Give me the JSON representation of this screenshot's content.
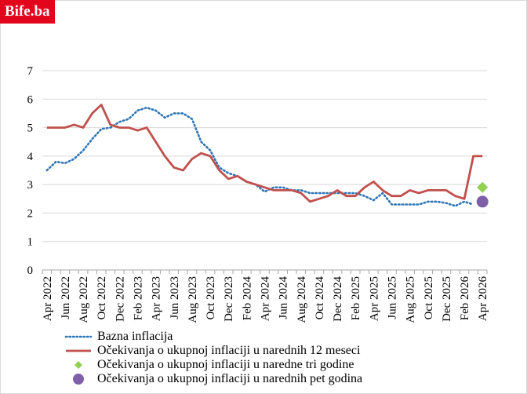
{
  "logo": {
    "text": "Bife.ba",
    "color": "#e3051b"
  },
  "chart_data": {
    "type": "line",
    "x_labels_shown": [
      "Apr 2022",
      "Jun 2022",
      "Aug 2022",
      "Oct 2022",
      "Dec 2022",
      "Feb 2023",
      "Apr 2023",
      "Jun 2023",
      "Aug 2023",
      "Oct 2023",
      "Dec 2023",
      "Feb 2024",
      "Apr 2024",
      "Jun 2024",
      "Aug 2024",
      "Oct 2024",
      "Dec 2024",
      "Feb 2025",
      "Apr 2025",
      "Jun 2025",
      "Aug 2025",
      "Oct 2025",
      "Dec 2025",
      "Feb 2026",
      "Apr 2026"
    ],
    "ylim": [
      0,
      7
    ],
    "yticks": [
      0,
      1,
      2,
      3,
      4,
      5,
      6,
      7
    ],
    "grid": "horizontal",
    "legend_position": "bottom",
    "series": [
      {
        "name": "Bazna inflacija",
        "style": "dotted",
        "color": "#2e75b6",
        "x": [
          "Apr 2022",
          "May 2022",
          "Jun 2022",
          "Jul 2022",
          "Aug 2022",
          "Sep 2022",
          "Oct 2022",
          "Nov 2022",
          "Dec 2022",
          "Jan 2023",
          "Feb 2023",
          "Mar 2023",
          "Apr 2023",
          "May 2023",
          "Jun 2023",
          "Jul 2023",
          "Aug 2023",
          "Sep 2023",
          "Oct 2023",
          "Nov 2023",
          "Dec 2023",
          "Jan 2024",
          "Feb 2024",
          "Mar 2024",
          "Apr 2024",
          "May 2024",
          "Jun 2024",
          "Jul 2024",
          "Aug 2024",
          "Sep 2024",
          "Oct 2024",
          "Nov 2024",
          "Dec 2024",
          "Jan 2025",
          "Feb 2025",
          "Mar 2025",
          "Apr 2025",
          "May 2025",
          "Jun 2025",
          "Jul 2025",
          "Aug 2025",
          "Sep 2025",
          "Oct 2025",
          "Nov 2025",
          "Dec 2025",
          "Jan 2026",
          "Feb 2026",
          "Mar 2026"
        ],
        "values": [
          3.5,
          3.8,
          3.75,
          3.9,
          4.2,
          4.6,
          4.95,
          5.0,
          5.2,
          5.3,
          5.6,
          5.7,
          5.6,
          5.35,
          5.5,
          5.5,
          5.3,
          4.5,
          4.2,
          3.6,
          3.4,
          3.3,
          3.1,
          3.0,
          2.75,
          2.9,
          2.9,
          2.8,
          2.8,
          2.7,
          2.7,
          2.7,
          2.7,
          2.7,
          2.7,
          2.6,
          2.45,
          2.7,
          2.3,
          2.3,
          2.3,
          2.3,
          2.4,
          2.4,
          2.35,
          2.25,
          2.4,
          2.3
        ]
      },
      {
        "name": "Očekivanja o ukupnoj  inflaciji u narednih 12 meseci",
        "style": "solid",
        "color": "#c0504d",
        "x": [
          "Apr 2022",
          "May 2022",
          "Jun 2022",
          "Jul 2022",
          "Aug 2022",
          "Sep 2022",
          "Oct 2022",
          "Nov 2022",
          "Dec 2022",
          "Jan 2023",
          "Feb 2023",
          "Mar 2023",
          "Apr 2023",
          "May 2023",
          "Jun 2023",
          "Jul 2023",
          "Aug 2023",
          "Sep 2023",
          "Oct 2023",
          "Nov 2023",
          "Dec 2023",
          "Jan 2024",
          "Feb 2024",
          "Mar 2024",
          "Apr 2024",
          "May 2024",
          "Jun 2024",
          "Jul 2024",
          "Aug 2024",
          "Sep 2024",
          "Oct 2024",
          "Nov 2024",
          "Dec 2024",
          "Jan 2025",
          "Feb 2025",
          "Mar 2025",
          "Apr 2025",
          "May 2025",
          "Jun 2025",
          "Jul 2025",
          "Aug 2025",
          "Sep 2025",
          "Oct 2025",
          "Nov 2025",
          "Dec 2025",
          "Jan 2026",
          "Feb 2026",
          "Mar 2026",
          "Apr 2026"
        ],
        "values": [
          5.0,
          5.0,
          5.0,
          5.1,
          5.0,
          5.5,
          5.8,
          5.1,
          5.0,
          5.0,
          4.9,
          5.0,
          4.5,
          4.0,
          3.6,
          3.5,
          3.9,
          4.1,
          4.0,
          3.5,
          3.2,
          3.3,
          3.1,
          3.0,
          2.9,
          2.8,
          2.8,
          2.8,
          2.7,
          2.4,
          2.5,
          2.6,
          2.8,
          2.6,
          2.6,
          2.9,
          3.1,
          2.8,
          2.6,
          2.6,
          2.8,
          2.7,
          2.8,
          2.8,
          2.8,
          2.6,
          2.5,
          4.0,
          4.0
        ]
      },
      {
        "name": "Očekivanja o ukupnoj inflaciji u naredne tri godine",
        "style": "marker-diamond",
        "color": "#92d050",
        "x": [
          "Apr 2026"
        ],
        "values": [
          2.9
        ]
      },
      {
        "name": "Očekivanja o ukupnoj inflaciji u narednih pet godina",
        "style": "marker-circle",
        "color": "#7f60a8",
        "x": [
          "Apr 2026"
        ],
        "values": [
          2.4
        ]
      }
    ]
  }
}
